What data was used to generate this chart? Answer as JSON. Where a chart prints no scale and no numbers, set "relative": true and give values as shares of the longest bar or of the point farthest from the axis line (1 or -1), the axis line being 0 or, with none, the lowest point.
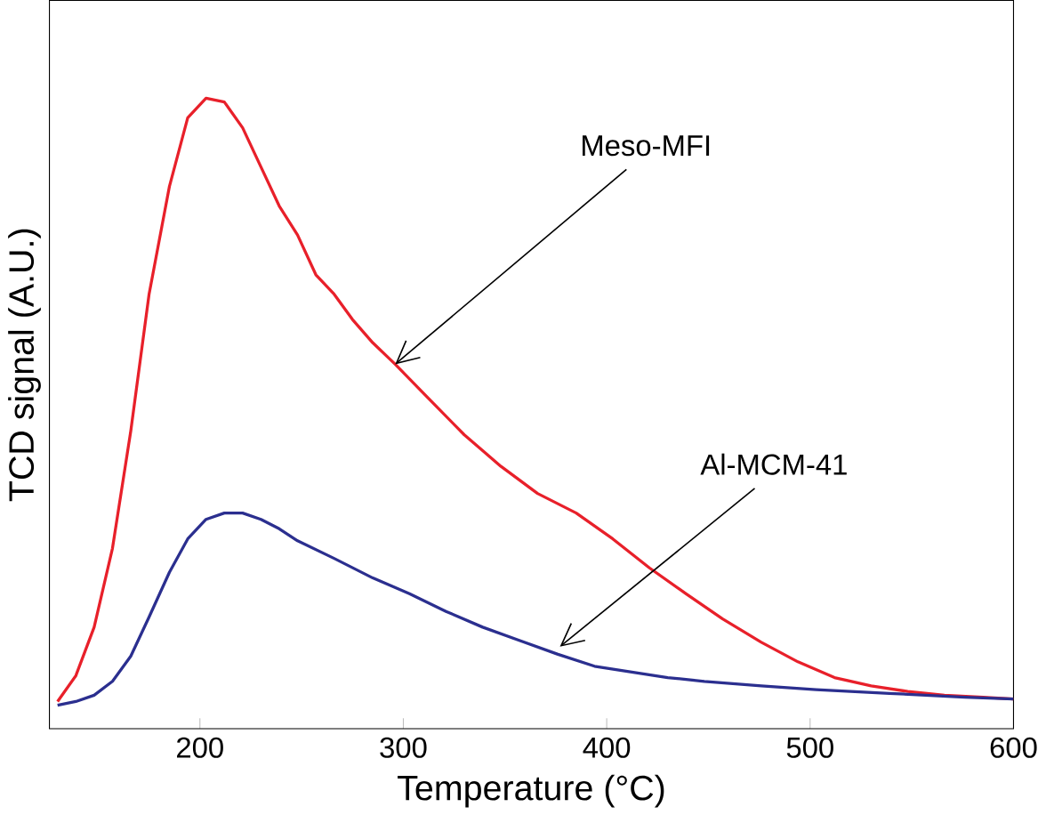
{
  "chart_data": {
    "type": "line",
    "xlabel": "Temperature (°C)",
    "ylabel": "TCD signal (A.U.)",
    "relative": true,
    "xlim": [
      126,
      600
    ],
    "xticks": [
      200,
      300,
      400,
      500,
      600
    ],
    "series": [
      {
        "color": "#e8202a",
        "x": [
          130,
          139,
          148,
          157,
          166,
          175,
          185,
          194,
          203,
          212,
          221,
          230,
          239,
          248,
          257,
          266,
          275,
          285,
          296,
          312,
          330,
          348,
          366,
          385,
          403,
          421,
          439,
          457,
          476,
          494,
          512,
          530,
          548,
          566,
          585,
          600
        ],
        "values": [
          0.043,
          0.084,
          0.161,
          0.286,
          0.472,
          0.689,
          0.86,
          0.969,
          1,
          0.994,
          0.953,
          0.891,
          0.829,
          0.783,
          0.72,
          0.689,
          0.649,
          0.612,
          0.578,
          0.525,
          0.466,
          0.416,
          0.373,
          0.342,
          0.301,
          0.255,
          0.214,
          0.174,
          0.137,
          0.106,
          0.081,
          0.068,
          0.059,
          0.053,
          0.05,
          0.047
        ]
      },
      {
        "color": "#2b2f8f",
        "x": [
          130,
          139,
          148,
          157,
          166,
          175,
          185,
          194,
          203,
          212,
          221,
          230,
          239,
          248,
          266,
          285,
          303,
          321,
          339,
          357,
          376,
          394,
          412,
          430,
          448,
          476,
          503,
          539,
          576,
          600
        ],
        "values": [
          0.037,
          0.043,
          0.053,
          0.075,
          0.115,
          0.177,
          0.248,
          0.301,
          0.332,
          0.342,
          0.342,
          0.332,
          0.317,
          0.298,
          0.27,
          0.239,
          0.214,
          0.186,
          0.161,
          0.14,
          0.118,
          0.099,
          0.09,
          0.081,
          0.075,
          0.068,
          0.062,
          0.056,
          0.05,
          0.047
        ]
      }
    ],
    "annotations": [
      {
        "text": "Meso-MFI",
        "x": 296,
        "y": 0.578
      },
      {
        "text": "Al-MCM-41",
        "x": 377,
        "y": 0.13
      }
    ]
  }
}
